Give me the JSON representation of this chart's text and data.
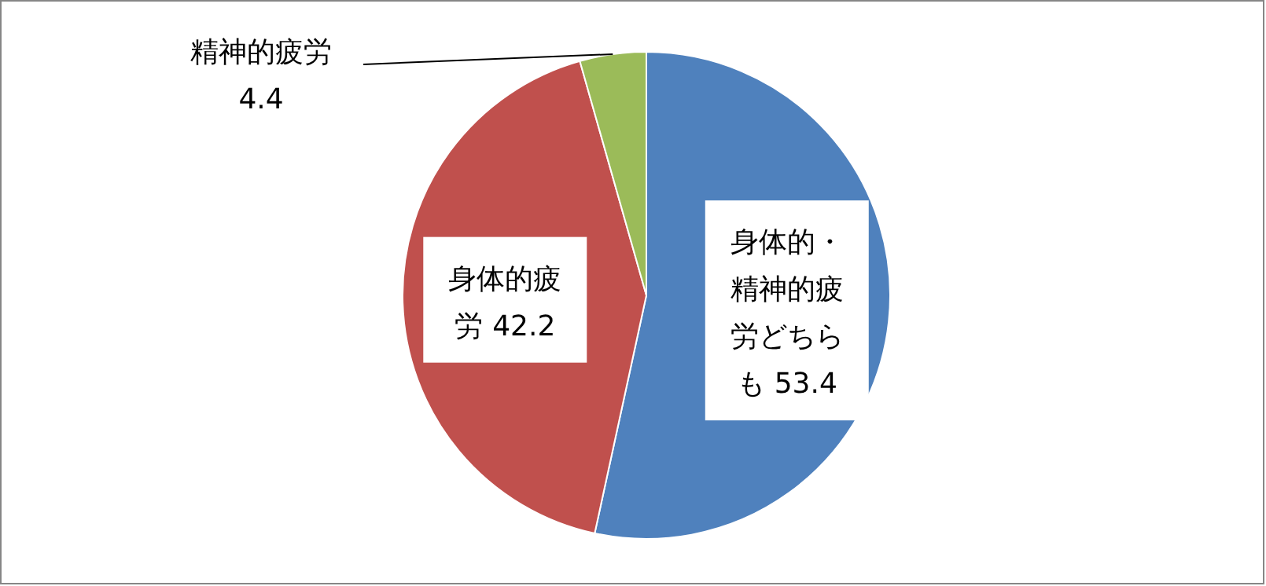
{
  "chart_data": {
    "type": "pie",
    "categories": [
      "身体的・精神的疲労どちらも",
      "身体的疲労",
      "精神的疲労"
    ],
    "values": [
      53.4,
      42.2,
      4.4
    ],
    "colors": [
      "#4f81bd",
      "#c0504d",
      "#9bbb59"
    ],
    "data_labels": true
  }
}
